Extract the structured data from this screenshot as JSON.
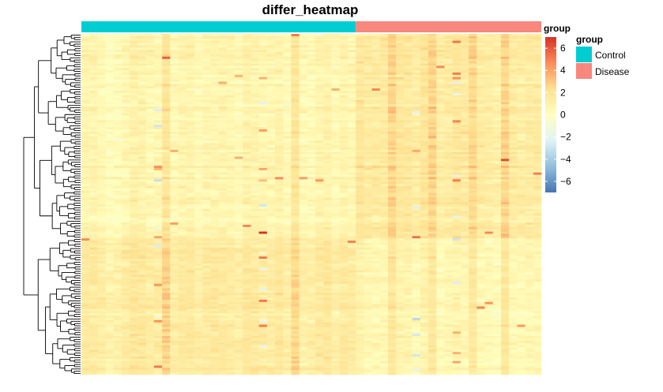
{
  "chart_data": {
    "type": "heatmap",
    "title": "differ_heatmap",
    "annotation": {
      "track_label": "group",
      "legend_title": "group",
      "groups": [
        {
          "name": "Control",
          "color": "#00CDD2",
          "columns": 34
        },
        {
          "name": "Disease",
          "color": "#F8877E",
          "columns": 23
        }
      ]
    },
    "color_scale": {
      "min": -7,
      "max": 7,
      "stops": [
        "#4575B4",
        "#91BFDB",
        "#E0F3F8",
        "#FFFFBF",
        "#FEE090",
        "#FC8D59",
        "#D73027"
      ],
      "ticks": [
        6,
        4,
        2,
        0,
        -2,
        -4,
        -6
      ],
      "tick_labels": [
        "6",
        "4",
        "2",
        "0",
        "−2",
        "−4",
        "−6"
      ]
    },
    "rows": 150,
    "clusters": [
      {
        "rows": 90,
        "control_mean": 0.7,
        "disease_mean": 1.6
      },
      {
        "rows": 60,
        "control_mean": 1.5,
        "disease_mean": 0.7
      }
    ],
    "row_dendrogram": true,
    "column_dendrogram": false
  }
}
